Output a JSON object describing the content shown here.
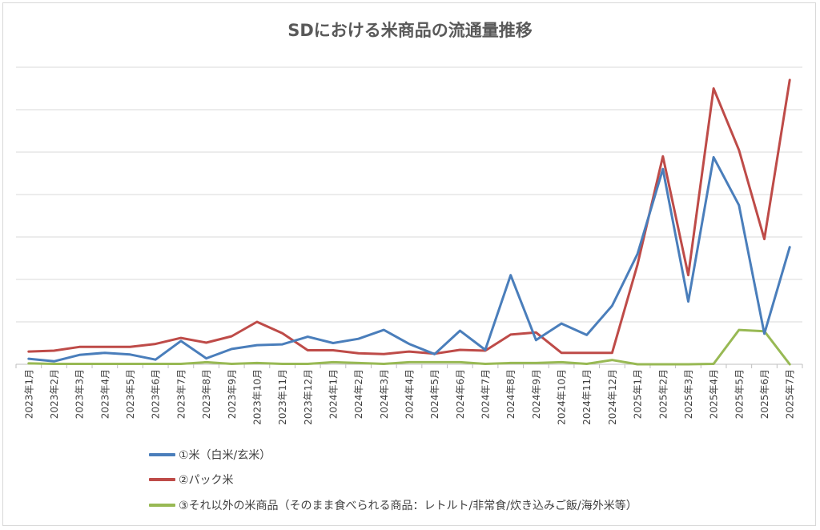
{
  "chart_data": {
    "type": "line",
    "title": "SDにおける米商品の流通量推移",
    "xlabel": "",
    "ylabel": "",
    "ylim": [
      0,
      7
    ],
    "y_tick_labels_shown": false,
    "grid": true,
    "legend_position": "bottom-left",
    "categories": [
      "2023年1月",
      "2023年2月",
      "2023年3月",
      "2023年4月",
      "2023年5月",
      "2023年6月",
      "2023年7月",
      "2023年8月",
      "2023年9月",
      "2023年10月",
      "2023年11月",
      "2023年12月",
      "2024年1月",
      "2024年2月",
      "2024年3月",
      "2024年4月",
      "2024年5月",
      "2024年6月",
      "2024年7月",
      "2024年8月",
      "2024年9月",
      "2024年10月",
      "2024年11月",
      "2024年12月",
      "2025年1月",
      "2025年2月",
      "2025年3月",
      "2025年4月",
      "2025年5月",
      "2025年6月",
      "2025年7月"
    ],
    "series": [
      {
        "name": "①米（白米/玄米）",
        "color": "#4a7ebb",
        "values": [
          0.13,
          0.07,
          0.22,
          0.27,
          0.23,
          0.11,
          0.55,
          0.14,
          0.36,
          0.45,
          0.47,
          0.65,
          0.5,
          0.6,
          0.81,
          0.48,
          0.24,
          0.79,
          0.34,
          2.1,
          0.57,
          0.96,
          0.69,
          1.38,
          2.6,
          4.6,
          1.48,
          4.88,
          3.75,
          0.72,
          2.76
        ]
      },
      {
        "name": "②パック米",
        "color": "#be4b48",
        "values": [
          0.3,
          0.32,
          0.41,
          0.41,
          0.41,
          0.48,
          0.62,
          0.51,
          0.66,
          1.0,
          0.73,
          0.33,
          0.33,
          0.26,
          0.24,
          0.3,
          0.25,
          0.34,
          0.32,
          0.7,
          0.75,
          0.27,
          0.27,
          0.27,
          2.35,
          4.9,
          2.1,
          6.5,
          5.05,
          2.95,
          6.7
        ]
      },
      {
        "name": "③それ以外の米商品（そのまま食べられる商品：レトルト/非常食/炊き込みご飯/海外米等）",
        "color": "#98b954",
        "values": [
          0.02,
          0.01,
          0.01,
          0.01,
          0.01,
          0.01,
          0.01,
          0.05,
          0.01,
          0.03,
          0.01,
          0.01,
          0.05,
          0.03,
          0.01,
          0.05,
          0.05,
          0.05,
          0.01,
          0.03,
          0.03,
          0.05,
          0.01,
          0.1,
          0.0,
          0.0,
          0.0,
          0.01,
          0.81,
          0.78,
          0.0
        ]
      }
    ]
  }
}
